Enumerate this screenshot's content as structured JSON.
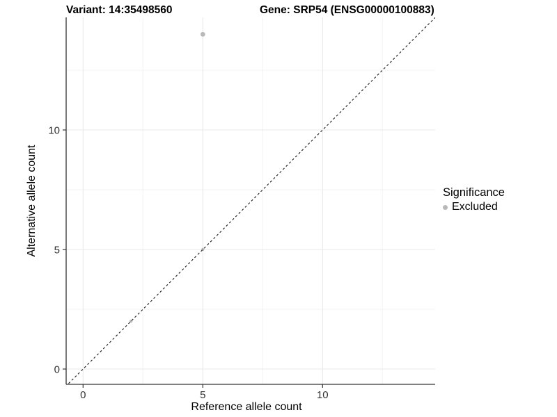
{
  "titles": {
    "variant": "Variant: 14:35498560",
    "gene": "Gene: SRP54 (ENSG00000100883)"
  },
  "legend": {
    "title": "Significance",
    "position": "right",
    "items": [
      {
        "label": "Excluded",
        "marker": "circle",
        "color": "#b8b8b8"
      }
    ]
  },
  "chart_data": {
    "type": "scatter",
    "xlabel": "Reference allele count",
    "ylabel": "Alternative allele count",
    "xlim": [
      0,
      14
    ],
    "ylim": [
      0,
      14
    ],
    "x_ticks": [
      0,
      5,
      10
    ],
    "y_ticks": [
      0,
      5,
      10
    ],
    "x_minor_ticks": [
      2.5,
      7.5,
      12.5
    ],
    "y_minor_ticks": [
      2.5,
      7.5,
      12.5
    ],
    "grid": "major-and-minor",
    "identity_line": {
      "slope": 1,
      "intercept": 0,
      "style": "dashed",
      "color": "#1a1a1a"
    },
    "series": [
      {
        "name": "Excluded",
        "color": "#b8b8b8",
        "points": [
          {
            "x": 5,
            "y": 14,
            "r": 3.4
          },
          {
            "x": 5,
            "y": 5,
            "r": 2.2
          },
          {
            "x": 2,
            "y": 2,
            "r": 2.2
          }
        ]
      }
    ]
  },
  "colors": {
    "background": "#ffffff",
    "grid_major": "#e8e8e8",
    "grid_minor": "#f3f3f3",
    "axis_line": "#333333",
    "tick_mark": "#333333",
    "tick_label": "#303030",
    "point": "#b8b8b8"
  }
}
